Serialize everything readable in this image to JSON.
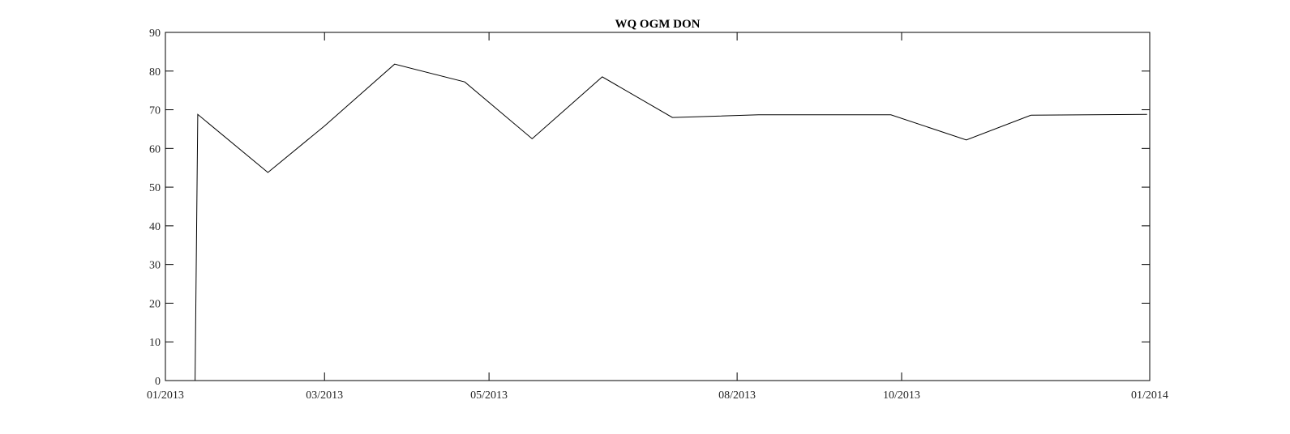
{
  "chart_data": {
    "type": "line",
    "title": "WQ OGM DON",
    "xlabel": "",
    "ylabel": "",
    "xlim": [
      "2013-01-01",
      "2014-01-01"
    ],
    "ylim": [
      0,
      90
    ],
    "grid": false,
    "x_ticks": [
      {
        "date": "2013-01-01",
        "label": "01/2013"
      },
      {
        "date": "2013-03-01",
        "label": "03/2013"
      },
      {
        "date": "2013-05-01",
        "label": "05/2013"
      },
      {
        "date": "2013-08-01",
        "label": "08/2013"
      },
      {
        "date": "2013-10-01",
        "label": "10/2013"
      },
      {
        "date": "2014-01-01",
        "label": "01/2014"
      }
    ],
    "y_ticks": [
      0,
      10,
      20,
      30,
      40,
      50,
      60,
      70,
      80,
      90
    ],
    "series": [
      {
        "color": "#000000",
        "points": [
          {
            "x": "2013-01-01",
            "y": 0
          },
          {
            "x": "2013-01-12",
            "y": 0
          },
          {
            "x": "2013-01-13",
            "y": 68.8
          },
          {
            "x": "2013-02-08",
            "y": 53.8
          },
          {
            "x": "2013-03-01",
            "y": 65.8
          },
          {
            "x": "2013-03-27",
            "y": 81.8
          },
          {
            "x": "2013-04-22",
            "y": 77.2
          },
          {
            "x": "2013-05-17",
            "y": 62.5
          },
          {
            "x": "2013-06-12",
            "y": 78.5
          },
          {
            "x": "2013-07-08",
            "y": 68.0
          },
          {
            "x": "2013-08-09",
            "y": 68.7
          },
          {
            "x": "2013-09-27",
            "y": 68.7
          },
          {
            "x": "2013-10-25",
            "y": 62.2
          },
          {
            "x": "2013-11-18",
            "y": 68.6
          },
          {
            "x": "2013-12-31",
            "y": 68.8
          }
        ]
      }
    ]
  }
}
